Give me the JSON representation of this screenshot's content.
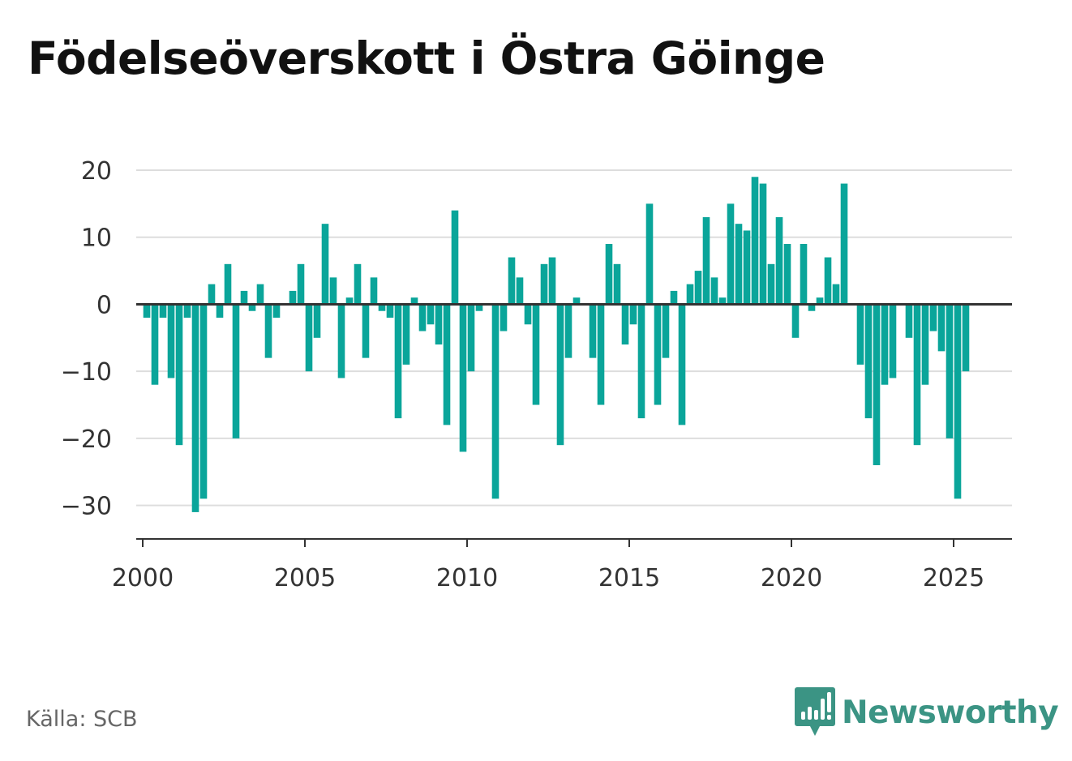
{
  "title": "Födelseöverskott i Östra Göinge",
  "source": "Källa: SCB",
  "brand": {
    "name": "Newsworthy",
    "icon": "newsworthy-logo-icon"
  },
  "colors": {
    "bar": "#0aa59a",
    "grid": "#dddddd",
    "axis": "#333333",
    "brand": "#3b9484"
  },
  "chart_data": {
    "type": "bar",
    "title": "Födelseöverskott i Östra Göinge",
    "xlabel": "",
    "ylabel": "",
    "ylim": [
      -35,
      20
    ],
    "xlim": [
      1999.8,
      2026.8
    ],
    "grid": true,
    "yticks": [
      20,
      10,
      0,
      -10,
      -20,
      -30
    ],
    "ytick_labels": [
      "20",
      "10",
      "0",
      "−10",
      "−20",
      "−30"
    ],
    "xticks": [
      2000,
      2005,
      2010,
      2015,
      2020,
      2025
    ],
    "xtick_labels": [
      "2000",
      "2005",
      "2010",
      "2015",
      "2020",
      "2025"
    ],
    "x": [
      2000.125,
      2000.375,
      2000.625,
      2000.875,
      2001.125,
      2001.375,
      2001.625,
      2001.875,
      2002.125,
      2002.375,
      2002.625,
      2002.875,
      2003.125,
      2003.375,
      2003.625,
      2003.875,
      2004.125,
      2004.375,
      2004.625,
      2004.875,
      2005.125,
      2005.375,
      2005.625,
      2005.875,
      2006.125,
      2006.375,
      2006.625,
      2006.875,
      2007.125,
      2007.375,
      2007.625,
      2007.875,
      2008.125,
      2008.375,
      2008.625,
      2008.875,
      2009.125,
      2009.375,
      2009.625,
      2009.875,
      2010.125,
      2010.375,
      2010.625,
      2010.875,
      2011.125,
      2011.375,
      2011.625,
      2011.875,
      2012.125,
      2012.375,
      2012.625,
      2012.875,
      2013.125,
      2013.375,
      2013.625,
      2013.875,
      2014.125,
      2014.375,
      2014.625,
      2014.875,
      2015.125,
      2015.375,
      2015.625,
      2015.875,
      2016.125,
      2016.375,
      2016.625,
      2016.875,
      2017.125,
      2017.375,
      2017.625,
      2017.875,
      2018.125,
      2018.375,
      2018.625,
      2018.875,
      2019.125,
      2019.375,
      2019.625,
      2019.875,
      2020.125,
      2020.375,
      2020.625,
      2020.875,
      2021.125,
      2021.375,
      2021.625,
      2021.875,
      2022.125,
      2022.375,
      2022.625,
      2022.875,
      2023.125,
      2023.375,
      2023.625,
      2023.875,
      2024.125,
      2024.375,
      2024.625,
      2024.875,
      2025.125,
      2025.375
    ],
    "values": [
      -2,
      -12,
      -2,
      -11,
      -21,
      -2,
      -31,
      -29,
      3,
      -2,
      6,
      -20,
      2,
      -1,
      3,
      -8,
      -2,
      0,
      2,
      6,
      -10,
      -5,
      12,
      4,
      -11,
      1,
      6,
      -8,
      4,
      -1,
      -2,
      -17,
      -9,
      1,
      -4,
      -3,
      -6,
      -18,
      14,
      -22,
      -10,
      -1,
      0,
      -29,
      -4,
      7,
      4,
      -3,
      -15,
      6,
      7,
      -21,
      -8,
      1,
      0,
      -8,
      -15,
      9,
      6,
      -6,
      -3,
      -17,
      15,
      -15,
      -8,
      2,
      -18,
      3,
      5,
      13,
      4,
      1,
      15,
      12,
      11,
      19,
      18,
      6,
      13,
      9,
      -5,
      9,
      -1,
      1,
      7,
      3,
      18,
      0,
      -9,
      -17,
      -24,
      -12,
      -11,
      0,
      -5,
      -21,
      -12,
      -4,
      -7,
      -20,
      -29,
      -10
    ]
  }
}
